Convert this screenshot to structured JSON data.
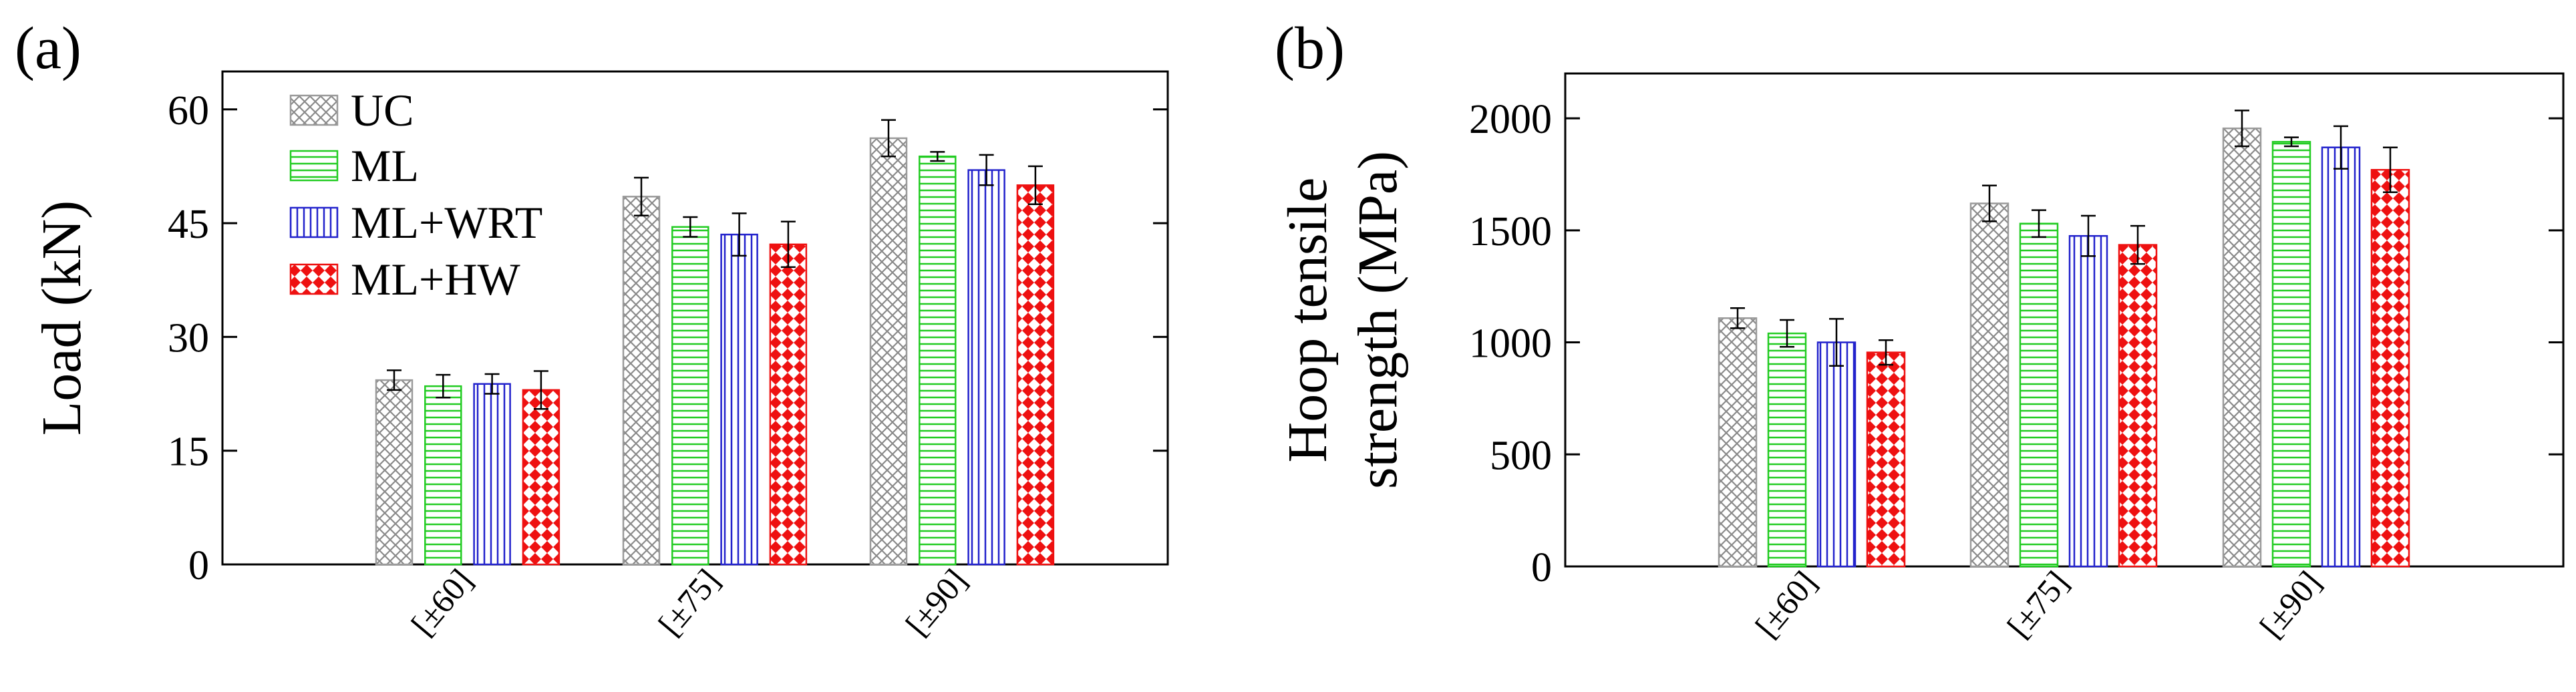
{
  "figure": {
    "panels": [
      "(a)",
      "(b)"
    ]
  },
  "chart_data": [
    {
      "type": "bar",
      "panel_label": "(a)",
      "title": "",
      "xlabel": "",
      "ylabel": "Load (kN)",
      "categories": [
        "[±60]",
        "[±75]",
        "[±90]"
      ],
      "ylim": [
        0,
        65
      ],
      "yticks": [
        0,
        15,
        30,
        45,
        60
      ],
      "yticks_labels": [
        "0",
        "15",
        "30",
        "45",
        "60"
      ],
      "legend": "top-left",
      "series": [
        {
          "name": "UC",
          "values": [
            24.3,
            48.5,
            56.2
          ],
          "errors": [
            1.3,
            2.5,
            2.4
          ],
          "color": "#9a9a9a",
          "pattern": "crosshatch"
        },
        {
          "name": "ML",
          "values": [
            23.5,
            44.5,
            53.8
          ],
          "errors": [
            1.5,
            1.3,
            0.6
          ],
          "color": "#22cc22",
          "pattern": "horizontal"
        },
        {
          "name": "ML+WRT",
          "values": [
            23.8,
            43.5,
            52.0
          ],
          "errors": [
            1.3,
            2.8,
            2.0
          ],
          "color": "#2222cc",
          "pattern": "vertical"
        },
        {
          "name": "ML+HW",
          "values": [
            23.0,
            42.2,
            50.0
          ],
          "errors": [
            2.5,
            3.0,
            2.5
          ],
          "color": "#ee1111",
          "pattern": "checker"
        }
      ]
    },
    {
      "type": "bar",
      "panel_label": "(b)",
      "title": "",
      "xlabel": "",
      "ylabel": [
        "Hoop tensile",
        "strength (MPa)"
      ],
      "categories": [
        "[±60]",
        "[±75]",
        "[±90]"
      ],
      "ylim": [
        0,
        2200
      ],
      "yticks": [
        0,
        500,
        1000,
        1500,
        2000
      ],
      "yticks_labels": [
        "0",
        "500",
        "1000",
        "1500",
        "2000"
      ],
      "series": [
        {
          "name": "UC",
          "values": [
            1108,
            1620,
            1955
          ],
          "errors": [
            45,
            80,
            80
          ],
          "color": "#9a9a9a",
          "pattern": "crosshatch"
        },
        {
          "name": "ML",
          "values": [
            1040,
            1530,
            1895
          ],
          "errors": [
            60,
            60,
            20
          ],
          "color": "#22cc22",
          "pattern": "horizontal"
        },
        {
          "name": "ML+WRT",
          "values": [
            1000,
            1475,
            1870
          ],
          "errors": [
            105,
            90,
            95
          ],
          "color": "#2222cc",
          "pattern": "vertical"
        },
        {
          "name": "ML+HW",
          "values": [
            955,
            1435,
            1770
          ],
          "errors": [
            55,
            85,
            100
          ],
          "color": "#ee1111",
          "pattern": "checker"
        }
      ]
    }
  ]
}
